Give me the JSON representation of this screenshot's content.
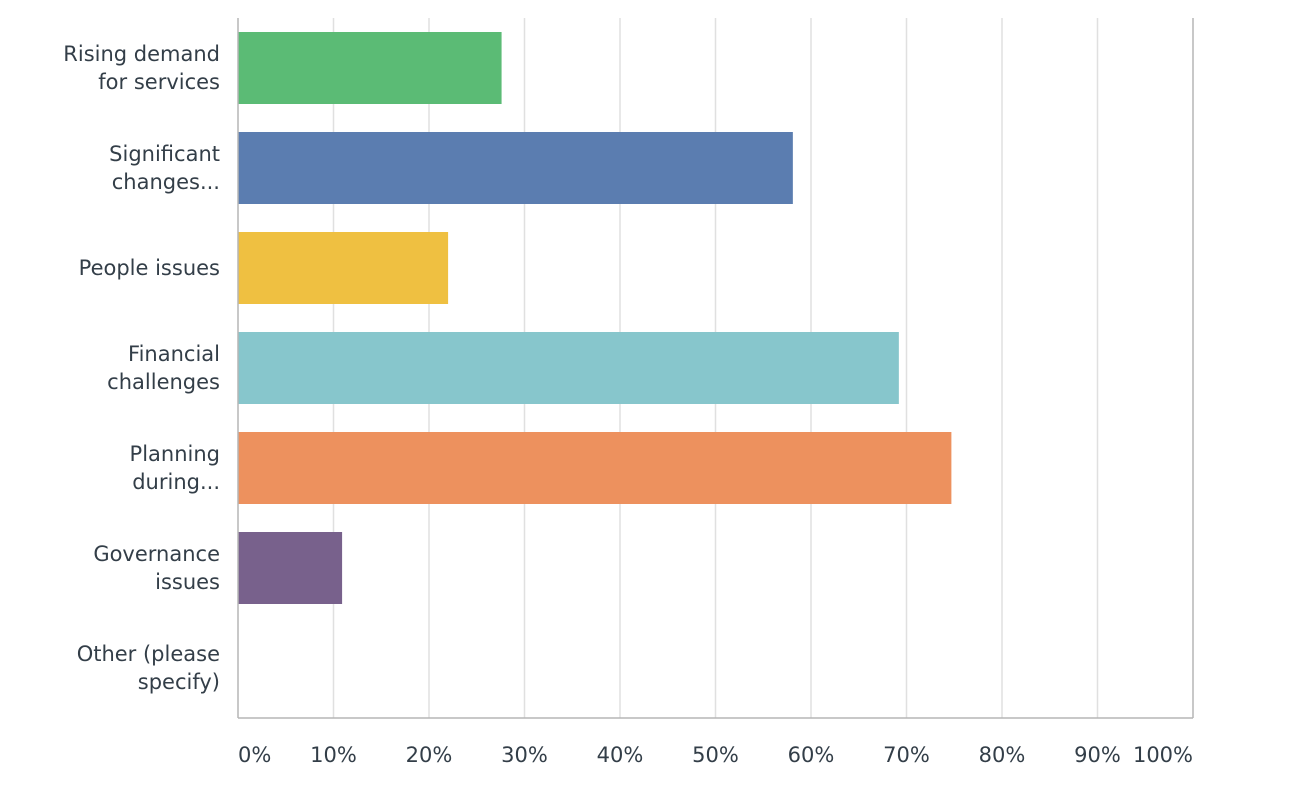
{
  "chart_data": {
    "type": "bar",
    "orientation": "horizontal",
    "categories": [
      [
        "Rising demand",
        "for services"
      ],
      [
        "Significant",
        "changes..."
      ],
      [
        "People issues"
      ],
      [
        "Financial",
        "challenges"
      ],
      [
        "Planning",
        "during..."
      ],
      [
        "Governance",
        "issues"
      ],
      [
        "Other (please",
        "specify)"
      ]
    ],
    "values": [
      27.6,
      58.1,
      22.0,
      69.2,
      74.7,
      10.9,
      0
    ],
    "colors": [
      "#5bbb75",
      "#5b7db0",
      "#efc041",
      "#87c6cc",
      "#ed915e",
      "#78618c",
      "#cccccc"
    ],
    "xlim": [
      0,
      100
    ],
    "x_ticks": [
      "0%",
      "10%",
      "20%",
      "30%",
      "40%",
      "50%",
      "60%",
      "70%",
      "80%",
      "90%",
      "100%"
    ],
    "grid": true,
    "grid_color": "#e0e0e0",
    "axis_color": "#b5b5b5",
    "title": "",
    "xlabel": "",
    "ylabel": ""
  }
}
